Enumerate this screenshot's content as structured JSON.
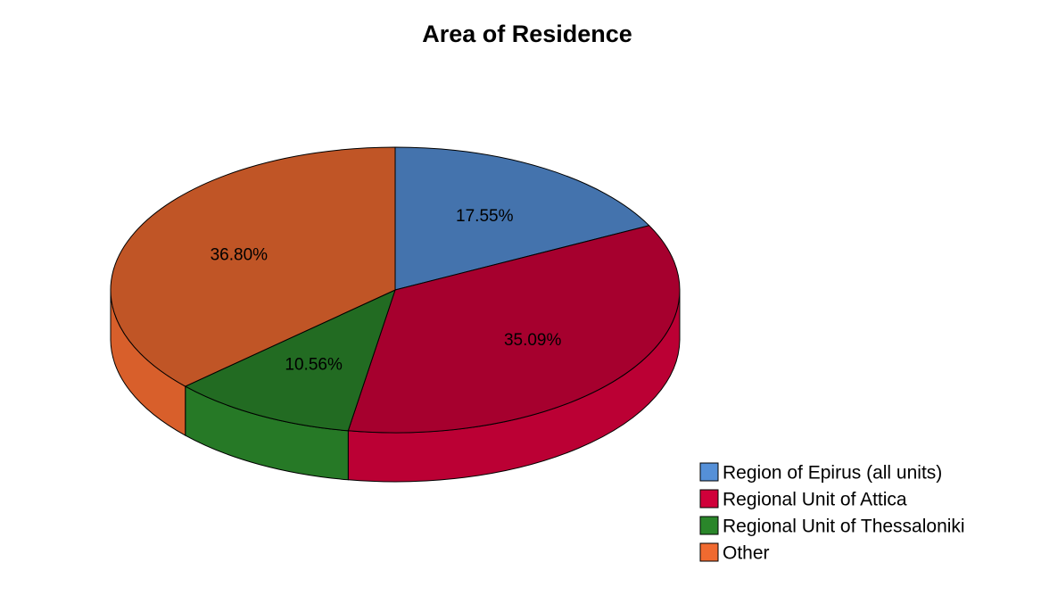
{
  "chart_data": {
    "type": "pie",
    "title": "Area of Residence",
    "categories": [
      "Region of Epirus (all units)",
      "Regional Unit of Attica",
      "Regional Unit of Thessaloniki",
      "Other"
    ],
    "values": [
      17.55,
      35.09,
      10.56,
      36.8
    ],
    "value_labels": [
      "17.55%",
      "35.09%",
      "10.56%",
      "36.80%"
    ],
    "colors": [
      "#5590d8",
      "#d0003a",
      "#2a862a",
      "#f06a30"
    ]
  }
}
